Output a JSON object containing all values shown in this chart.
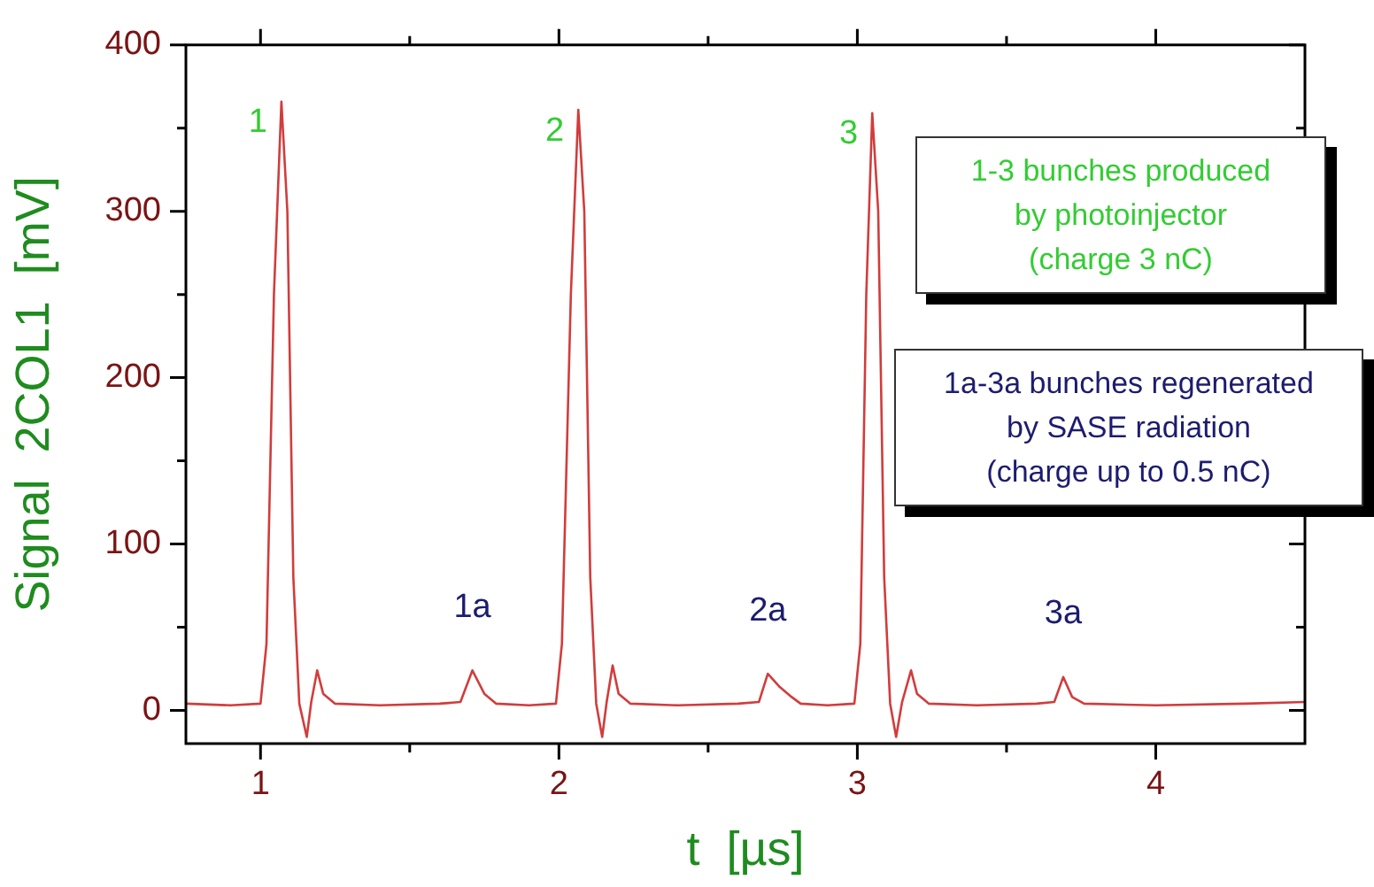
{
  "chart_data": {
    "type": "line",
    "xlabel": "t  [µs]",
    "ylabel": "Signal  2COL1  [mV]",
    "xlim": [
      0.75,
      4.5
    ],
    "ylim": [
      -20,
      400
    ],
    "xticks": [
      1,
      {
        "value": 1.5,
        "label": null
      },
      2,
      {
        "value": 2.5,
        "label": null
      },
      3,
      {
        "value": 3.5,
        "label": null
      },
      4
    ],
    "yticks": [
      0,
      {
        "value": 50,
        "label": null
      },
      100,
      {
        "value": 150,
        "label": null
      },
      200,
      {
        "value": 250,
        "label": null
      },
      300,
      {
        "value": 350,
        "label": null
      },
      400
    ],
    "grid": false,
    "legend": false,
    "marker": "none",
    "line_style": "solid",
    "series": [
      {
        "color": "#d23c3c",
        "x": [
          0.75,
          0.9,
          1.0,
          1.02,
          1.045,
          1.07,
          1.09,
          1.11,
          1.13,
          1.155,
          1.17,
          1.19,
          1.21,
          1.25,
          1.4,
          1.6,
          1.67,
          1.71,
          1.75,
          1.79,
          1.9,
          1.99,
          2.01,
          2.04,
          2.065,
          2.085,
          2.105,
          2.125,
          2.145,
          2.16,
          2.18,
          2.2,
          2.24,
          2.4,
          2.6,
          2.67,
          2.7,
          2.74,
          2.78,
          2.81,
          2.9,
          2.99,
          3.01,
          3.03,
          3.05,
          3.07,
          3.09,
          3.11,
          3.13,
          3.15,
          3.18,
          3.2,
          3.24,
          3.4,
          3.6,
          3.66,
          3.69,
          3.72,
          3.76,
          4.0,
          4.3,
          4.5
        ],
        "values": [
          4,
          3,
          4,
          40,
          250,
          366,
          300,
          80,
          4,
          -16,
          5,
          24,
          10,
          4,
          3,
          4,
          5,
          24,
          10,
          4,
          3,
          4,
          40,
          250,
          361,
          300,
          80,
          4,
          -16,
          5,
          27,
          10,
          4,
          3,
          4,
          5,
          22,
          14,
          8,
          4,
          3,
          4,
          40,
          250,
          359,
          300,
          80,
          4,
          -16,
          5,
          24,
          10,
          4,
          3,
          4,
          5,
          20,
          8,
          4,
          3,
          4,
          5
        ]
      }
    ],
    "annotations": [
      {
        "text": "1",
        "x": 1.07,
        "y": 366
      },
      {
        "text": "2",
        "x": 2.065,
        "y": 361
      },
      {
        "text": "3",
        "x": 3.05,
        "y": 359
      },
      {
        "text": "1a",
        "x": 1.71,
        "y": 24
      },
      {
        "text": "2a",
        "x": 2.7,
        "y": 22
      },
      {
        "text": "3a",
        "x": 3.69,
        "y": 20
      },
      "1-3 bunches produced\nby photoinjector\n(charge 3 nC)",
      "1a-3a bunches regenerated\nby SASE radiation\n(charge up to 0.5 nC)"
    ]
  }
}
